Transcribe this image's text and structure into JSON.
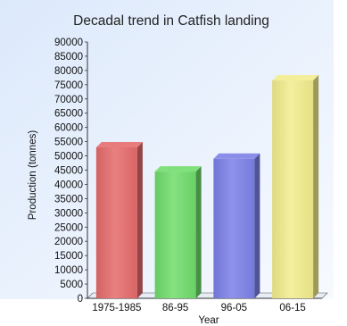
{
  "chart_data": {
    "type": "bar",
    "title": "Decadal trend in Catfish  landing",
    "xlabel": "Year",
    "ylabel": "Production (tonnes)",
    "categories": [
      "1975-1985",
      "86-95",
      "96-05",
      "06-15"
    ],
    "values": [
      53000,
      44500,
      49000,
      76500
    ],
    "ylim": [
      0,
      90000
    ],
    "ytick_step": 5000,
    "grid": false,
    "legend": "none",
    "bar_colors": [
      "#e56a6a",
      "#6fdc6a",
      "#7b7fe6",
      "#f1ec8c"
    ],
    "background_color": "#dce9fb"
  }
}
